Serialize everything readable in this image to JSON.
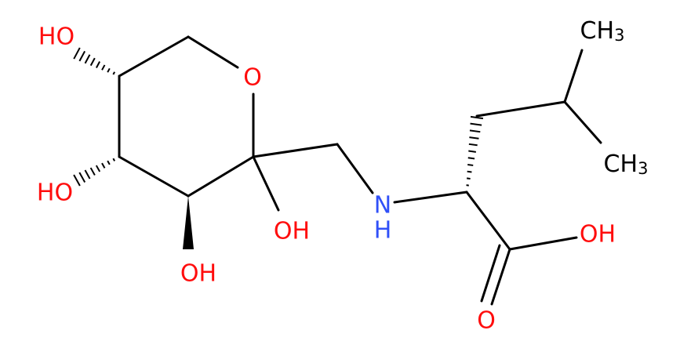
{
  "atoms": {
    "ho_top": "HO",
    "o_ring": "O",
    "ho_middle": "HO",
    "oh_bottom": "OH",
    "oh_anomeric": "OH",
    "amine": {
      "n": "N",
      "h": "H"
    },
    "oh_acid": "OH",
    "o_carbonyl": "O",
    "ch3_top": {
      "main": "CH",
      "sub": "3"
    },
    "ch3_bottom": {
      "main": "CH",
      "sub": "3"
    }
  }
}
